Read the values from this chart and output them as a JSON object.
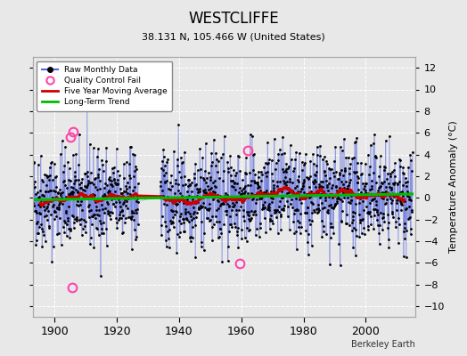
{
  "title": "WESTCLIFFE",
  "subtitle": "38.131 N, 105.466 W (United States)",
  "ylabel": "Temperature Anomaly (°C)",
  "credit": "Berkeley Earth",
  "ylim": [
    -11,
    13
  ],
  "yticks": [
    -10,
    -8,
    -6,
    -4,
    -2,
    0,
    2,
    4,
    6,
    8,
    10,
    12
  ],
  "xlim": [
    1893,
    2016
  ],
  "xticks": [
    1900,
    1920,
    1940,
    1960,
    1980,
    2000
  ],
  "bg_color": "#e8e8e8",
  "plot_bg_color": "#e8e8e8",
  "raw_line_color": "#5566dd",
  "raw_marker_color": "#000000",
  "qc_fail_color": "#ff44aa",
  "moving_avg_color": "#cc0000",
  "trend_color": "#00bb00",
  "seed": 42,
  "start_year": 1893,
  "end_year": 2014,
  "gap_start": 1927,
  "gap_end": 1933,
  "noise_std": 2.2,
  "qc_fail_points": [
    [
      1905.2,
      5.6
    ],
    [
      1905.7,
      -8.3
    ],
    [
      1906.1,
      6.1
    ],
    [
      1959.5,
      -6.1
    ],
    [
      1962.2,
      4.4
    ]
  ]
}
